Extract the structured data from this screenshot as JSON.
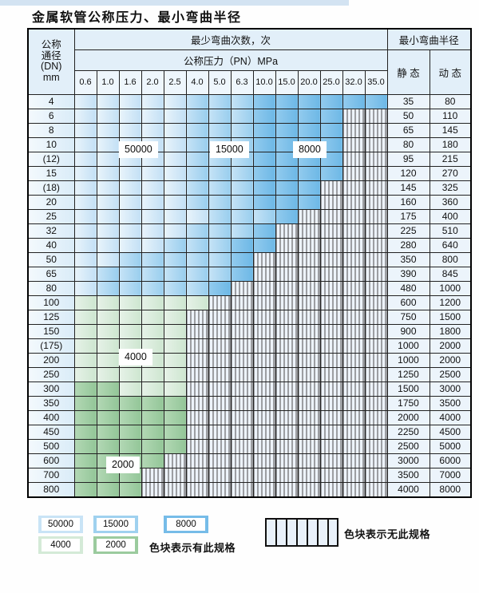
{
  "page": {
    "title": "金属软管公称压力、最小弯曲半径"
  },
  "table": {
    "header": {
      "dn_lines": [
        "公称",
        "通径",
        "(DN)",
        "mm"
      ],
      "cycles_label": "最少弯曲次数，次",
      "pressure_label": "公称压力（PN）MPa",
      "radius_label": "最小弯曲半径",
      "static_label": "静 态",
      "dynamic_label": "动 态"
    }
  },
  "region_labels": [
    {
      "text": "50000"
    },
    {
      "text": "15000"
    },
    {
      "text": "8000"
    },
    {
      "text": "4000"
    },
    {
      "text": "2000"
    }
  ],
  "legend": {
    "swatches": [
      {
        "label": "50000",
        "color": "#c9e4f6"
      },
      {
        "label": "15000",
        "color": "#9fd1ef"
      },
      {
        "label": "8000",
        "color": "#76bce8"
      },
      {
        "label": "4000",
        "color": "#d4ead7"
      },
      {
        "label": "2000",
        "color": "#9bcb9e"
      }
    ],
    "has_spec_note": "色块表示有此规格",
    "no_spec_note": "色块表示无此规格"
  },
  "chart_data": {
    "type": "table",
    "title": "金属软管公称压力、最小弯曲半径",
    "pn_mpa": [
      "0.6",
      "1.0",
      "1.6",
      "2.0",
      "2.5",
      "4.0",
      "5.0",
      "6.3",
      "10.0",
      "15.0",
      "20.0",
      "25.0",
      "32.0",
      "35.0"
    ],
    "cycle_levels": [
      "50000",
      "15000",
      "8000",
      "4000",
      "2000"
    ],
    "note": "bands = runs of [bending-cycle count, number of PN columns] from PN 0.6 rightward; PN columns beyond the listed runs have no specification (hatched)",
    "rows": [
      {
        "dn": "4",
        "bands": [
          [
            "50000",
            5
          ],
          [
            "15000",
            3
          ],
          [
            "8000",
            6
          ]
        ],
        "static": "35",
        "dynamic": "80"
      },
      {
        "dn": "6",
        "bands": [
          [
            "50000",
            5
          ],
          [
            "15000",
            3
          ],
          [
            "8000",
            4
          ]
        ],
        "static": "50",
        "dynamic": "110"
      },
      {
        "dn": "8",
        "bands": [
          [
            "50000",
            5
          ],
          [
            "15000",
            3
          ],
          [
            "8000",
            4
          ]
        ],
        "static": "65",
        "dynamic": "145"
      },
      {
        "dn": "10",
        "bands": [
          [
            "50000",
            5
          ],
          [
            "15000",
            3
          ],
          [
            "8000",
            4
          ]
        ],
        "static": "80",
        "dynamic": "180"
      },
      {
        "dn": "(12)",
        "bands": [
          [
            "50000",
            5
          ],
          [
            "15000",
            3
          ],
          [
            "8000",
            4
          ]
        ],
        "static": "95",
        "dynamic": "215"
      },
      {
        "dn": "15",
        "bands": [
          [
            "50000",
            5
          ],
          [
            "15000",
            3
          ],
          [
            "8000",
            4
          ]
        ],
        "static": "120",
        "dynamic": "270"
      },
      {
        "dn": "(18)",
        "bands": [
          [
            "50000",
            5
          ],
          [
            "15000",
            3
          ],
          [
            "8000",
            3
          ]
        ],
        "static": "145",
        "dynamic": "325"
      },
      {
        "dn": "20",
        "bands": [
          [
            "50000",
            5
          ],
          [
            "15000",
            3
          ],
          [
            "8000",
            3
          ]
        ],
        "static": "160",
        "dynamic": "360"
      },
      {
        "dn": "25",
        "bands": [
          [
            "50000",
            6
          ],
          [
            "15000",
            3
          ],
          [
            "8000",
            1
          ]
        ],
        "static": "175",
        "dynamic": "400"
      },
      {
        "dn": "32",
        "bands": [
          [
            "50000",
            5
          ],
          [
            "15000",
            3
          ],
          [
            "8000",
            1
          ]
        ],
        "static": "225",
        "dynamic": "510"
      },
      {
        "dn": "40",
        "bands": [
          [
            "50000",
            4
          ],
          [
            "15000",
            3
          ],
          [
            "8000",
            2
          ]
        ],
        "static": "280",
        "dynamic": "640"
      },
      {
        "dn": "50",
        "bands": [
          [
            "50000",
            2
          ],
          [
            "15000",
            5
          ],
          [
            "8000",
            1
          ]
        ],
        "static": "350",
        "dynamic": "800"
      },
      {
        "dn": "65",
        "bands": [
          [
            "50000",
            1
          ],
          [
            "15000",
            6
          ],
          [
            "8000",
            1
          ]
        ],
        "static": "390",
        "dynamic": "845"
      },
      {
        "dn": "80",
        "bands": [
          [
            "50000",
            1
          ],
          [
            "15000",
            5
          ],
          [
            "8000",
            1
          ]
        ],
        "static": "480",
        "dynamic": "1000"
      },
      {
        "dn": "100",
        "bands": [
          [
            "4000",
            6
          ]
        ],
        "static": "600",
        "dynamic": "1200"
      },
      {
        "dn": "125",
        "bands": [
          [
            "4000",
            5
          ]
        ],
        "static": "750",
        "dynamic": "1500"
      },
      {
        "dn": "150",
        "bands": [
          [
            "4000",
            5
          ]
        ],
        "static": "900",
        "dynamic": "1800"
      },
      {
        "dn": "(175)",
        "bands": [
          [
            "4000",
            5
          ]
        ],
        "static": "1000",
        "dynamic": "2000"
      },
      {
        "dn": "200",
        "bands": [
          [
            "4000",
            5
          ]
        ],
        "static": "1000",
        "dynamic": "2000"
      },
      {
        "dn": "250",
        "bands": [
          [
            "4000",
            5
          ]
        ],
        "static": "1250",
        "dynamic": "2500"
      },
      {
        "dn": "300",
        "bands": [
          [
            "2000",
            2
          ],
          [
            "4000",
            3
          ]
        ],
        "static": "1500",
        "dynamic": "3000"
      },
      {
        "dn": "350",
        "bands": [
          [
            "2000",
            5
          ]
        ],
        "static": "1750",
        "dynamic": "3500"
      },
      {
        "dn": "400",
        "bands": [
          [
            "2000",
            5
          ]
        ],
        "static": "2000",
        "dynamic": "4000"
      },
      {
        "dn": "450",
        "bands": [
          [
            "2000",
            5
          ]
        ],
        "static": "2250",
        "dynamic": "4500"
      },
      {
        "dn": "500",
        "bands": [
          [
            "2000",
            5
          ]
        ],
        "static": "2500",
        "dynamic": "5000"
      },
      {
        "dn": "600",
        "bands": [
          [
            "2000",
            4
          ]
        ],
        "static": "3000",
        "dynamic": "6000"
      },
      {
        "dn": "700",
        "bands": [
          [
            "2000",
            3
          ]
        ],
        "static": "3500",
        "dynamic": "7000"
      },
      {
        "dn": "800",
        "bands": [
          [
            "2000",
            3
          ]
        ],
        "static": "4000",
        "dynamic": "8000"
      }
    ]
  }
}
